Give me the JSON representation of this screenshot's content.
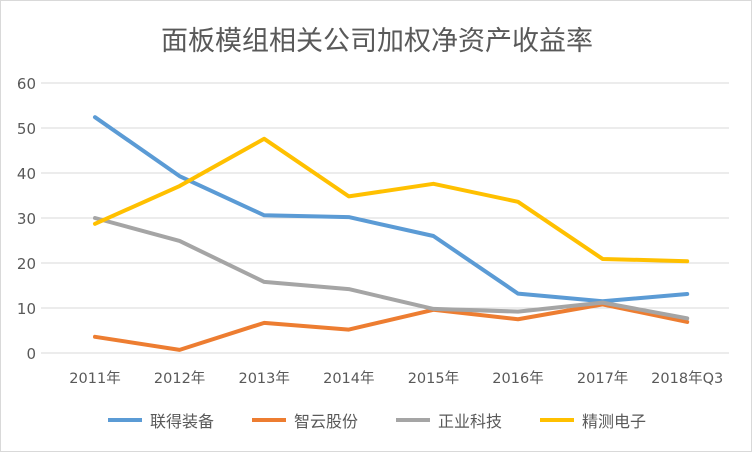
{
  "chart_data": {
    "type": "line",
    "title": "面板模组相关公司加权净资产收益率",
    "categories": [
      "2011年",
      "2012年",
      "2013年",
      "2014年",
      "2015年",
      "2016年",
      "2017年",
      "2018年Q3"
    ],
    "ylim": [
      0,
      60
    ],
    "yticks": [
      0,
      10,
      20,
      30,
      40,
      50,
      60
    ],
    "grid": true,
    "legend_position": "bottom",
    "series": [
      {
        "name": "联得装备",
        "color": "#5b9bd5",
        "values": [
          52.4,
          39.3,
          30.6,
          30.2,
          26.0,
          13.2,
          11.5,
          13.1
        ]
      },
      {
        "name": "智云股份",
        "color": "#ed7d31",
        "values": [
          3.6,
          0.7,
          6.7,
          5.2,
          9.6,
          7.5,
          10.8,
          6.9
        ]
      },
      {
        "name": "正业科技",
        "color": "#a5a5a5",
        "values": [
          30.0,
          24.9,
          15.8,
          14.2,
          9.8,
          9.2,
          11.2,
          7.7
        ]
      },
      {
        "name": "精测电子",
        "color": "#ffc000",
        "values": [
          28.7,
          37.1,
          47.6,
          34.8,
          37.6,
          33.6,
          20.9,
          20.4
        ]
      }
    ]
  }
}
